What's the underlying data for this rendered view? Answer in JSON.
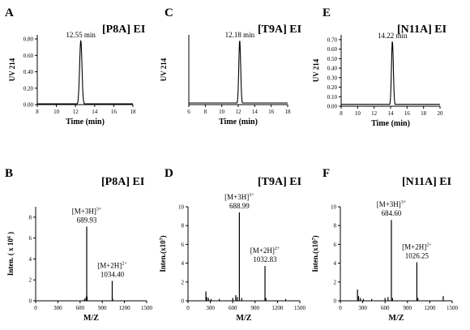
{
  "chart_data": [
    {
      "type": "line",
      "panel": "A",
      "title": "[P8A] EI",
      "xlabel": "Time (min)",
      "ylabel": "UV 214",
      "xlim": [
        8,
        18
      ],
      "ylim": [
        0,
        0.85
      ],
      "xticks": [
        8,
        10,
        12,
        14,
        16,
        18
      ],
      "yticks": [
        0.0,
        0.2,
        0.4,
        0.6,
        0.8
      ],
      "baseline": 0.01,
      "series": [
        {
          "peak_x": 12.55,
          "peak_y": 0.78,
          "width": 0.12
        }
      ],
      "annotations": [
        {
          "x": 12.55,
          "lines": [
            "12.55 min"
          ]
        }
      ]
    },
    {
      "type": "line",
      "panel": "C",
      "title": "[T9A] EI",
      "xlabel": "Time (min)",
      "ylabel": "UV 214",
      "xlim": [
        6,
        18
      ],
      "ylim": [
        0,
        0.85
      ],
      "xticks": [
        6,
        8,
        10,
        12,
        14,
        16,
        18
      ],
      "yticks": [],
      "baseline": 0.02,
      "series": [
        {
          "peak_x": 12.18,
          "peak_y": 0.78,
          "width": 0.11
        }
      ],
      "annotations": [
        {
          "x": 12.18,
          "lines": [
            "12.18 min"
          ]
        }
      ]
    },
    {
      "type": "line",
      "panel": "E",
      "title": "[N11A] EI",
      "xlabel": "Time (min)",
      "ylabel": "UV 214",
      "xlim": [
        8,
        20
      ],
      "ylim": [
        0,
        0.75
      ],
      "xticks": [
        8,
        10,
        12,
        14,
        16,
        18,
        20
      ],
      "yticks": [
        0.0,
        0.1,
        0.2,
        0.3,
        0.4,
        0.5,
        0.6,
        0.7
      ],
      "baseline": 0.02,
      "series": [
        {
          "peak_x": 14.22,
          "peak_y": 0.68,
          "width": 0.11
        }
      ],
      "annotations": [
        {
          "x": 14.22,
          "lines": [
            "14.22 min"
          ]
        }
      ]
    },
    {
      "type": "bar",
      "panel": "B",
      "title": "[P8A] EI",
      "xlabel": "M/Z",
      "ylabel": "Inten. ( x 10^6 )",
      "xlim": [
        0,
        1500
      ],
      "ylim": [
        0,
        9
      ],
      "xticks": [
        0,
        300,
        600,
        900,
        1200,
        1500
      ],
      "yticks": [
        0,
        2,
        4,
        6,
        8
      ],
      "peaks": [
        {
          "mz": 660,
          "intensity": 0.2
        },
        {
          "mz": 680,
          "intensity": 0.3
        },
        {
          "mz": 685,
          "intensity": 0.4
        },
        {
          "mz": 689.93,
          "intensity": 7.1
        },
        {
          "mz": 692,
          "intensity": 0.5
        },
        {
          "mz": 696,
          "intensity": 0.3
        },
        {
          "mz": 1034.4,
          "intensity": 1.9
        },
        {
          "mz": 1040,
          "intensity": 0.2
        }
      ],
      "annotations": [
        {
          "x": 689.93,
          "lines": [
            "[M+3H]3+",
            "689.93"
          ],
          "align": "mid"
        },
        {
          "x": 1034.4,
          "lines": [
            "[M+2H]2+",
            "1034.40"
          ],
          "align": "mid"
        }
      ]
    },
    {
      "type": "bar",
      "panel": "D",
      "title": "[T9A] EI",
      "xlabel": "M/Z",
      "ylabel": "Inten.(x10^7)",
      "xlim": [
        0,
        1500
      ],
      "ylim": [
        0,
        10
      ],
      "xticks": [
        0,
        300,
        600,
        900,
        1200,
        1500
      ],
      "yticks": [
        0,
        2,
        4,
        6,
        8,
        10
      ],
      "peaks": [
        {
          "mz": 240,
          "intensity": 1.0
        },
        {
          "mz": 252,
          "intensity": 0.4
        },
        {
          "mz": 275,
          "intensity": 0.3
        },
        {
          "mz": 310,
          "intensity": 0.2
        },
        {
          "mz": 420,
          "intensity": 0.2
        },
        {
          "mz": 600,
          "intensity": 0.3
        },
        {
          "mz": 640,
          "intensity": 0.6
        },
        {
          "mz": 660,
          "intensity": 0.4
        },
        {
          "mz": 688.99,
          "intensity": 9.4
        },
        {
          "mz": 720,
          "intensity": 0.3
        },
        {
          "mz": 1032.83,
          "intensity": 3.7
        },
        {
          "mz": 1045,
          "intensity": 0.3
        },
        {
          "mz": 1310,
          "intensity": 0.2
        }
      ],
      "annotations": [
        {
          "x": 688.99,
          "lines": [
            "[M+3H]3+",
            "688.99"
          ],
          "align": "mid"
        },
        {
          "x": 1032.83,
          "lines": [
            "[M+2H]2+",
            "1032.83"
          ],
          "align": "mid"
        }
      ]
    },
    {
      "type": "bar",
      "panel": "F",
      "title": "[N11A] EI",
      "xlabel": "M/Z",
      "ylabel": "Inten.(x10^7)",
      "xlim": [
        0,
        1500
      ],
      "ylim": [
        0,
        10
      ],
      "xticks": [
        0,
        300,
        600,
        900,
        1200,
        1500
      ],
      "yticks": [
        0,
        2,
        4,
        6,
        8,
        10
      ],
      "peaks": [
        {
          "mz": 230,
          "intensity": 1.2
        },
        {
          "mz": 245,
          "intensity": 0.5
        },
        {
          "mz": 270,
          "intensity": 0.3
        },
        {
          "mz": 310,
          "intensity": 0.2
        },
        {
          "mz": 420,
          "intensity": 0.2
        },
        {
          "mz": 600,
          "intensity": 0.3
        },
        {
          "mz": 640,
          "intensity": 0.4
        },
        {
          "mz": 684.6,
          "intensity": 8.6
        },
        {
          "mz": 700,
          "intensity": 0.3
        },
        {
          "mz": 1026.25,
          "intensity": 4.1
        },
        {
          "mz": 1040,
          "intensity": 0.3
        },
        {
          "mz": 1380,
          "intensity": 0.5
        }
      ],
      "annotations": [
        {
          "x": 684.6,
          "lines": [
            "[M+3H]3+",
            "684.60"
          ],
          "align": "mid"
        },
        {
          "x": 1026.25,
          "lines": [
            "[M+2H]2+",
            "1026.25"
          ],
          "align": "mid"
        }
      ]
    }
  ]
}
